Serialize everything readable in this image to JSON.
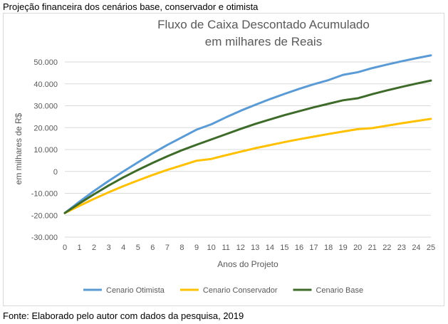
{
  "caption": {
    "top": "Projeção financeira dos cenários base, conservador e otimista",
    "bottom": "Fonte: Elaborado pelo autor com dados da pesquisa, 2019"
  },
  "chart_data": {
    "type": "line",
    "title": "Fluxo de Caixa Descontado Acumulado",
    "subtitle": "em milhares de Reais",
    "xlabel": "Anos do Projeto",
    "ylabel": "em milhares de R$",
    "ylim": [
      -30000,
      50000
    ],
    "y_ticks": [
      -30000,
      -20000,
      -10000,
      0,
      10000,
      20000,
      30000,
      40000,
      50000
    ],
    "y_tick_labels": [
      "-30.000",
      "-20.000",
      "-10.000",
      "0",
      "10.000",
      "20.000",
      "30.000",
      "40.000",
      "50.000"
    ],
    "x": [
      0,
      1,
      2,
      3,
      4,
      5,
      6,
      7,
      8,
      9,
      10,
      11,
      12,
      13,
      14,
      15,
      16,
      17,
      18,
      19,
      20,
      21,
      22,
      23,
      24,
      25
    ],
    "x_tick_labels": [
      "0",
      "1",
      "2",
      "3",
      "4",
      "5",
      "6",
      "7",
      "8",
      "9",
      "10",
      "11",
      "12",
      "13",
      "14",
      "15",
      "16",
      "17",
      "18",
      "19",
      "20",
      "21",
      "22",
      "23",
      "24",
      "25"
    ],
    "grid": true,
    "legend_position": "bottom",
    "series": [
      {
        "name": "Cenario Otimista",
        "color": "#5b9bd5",
        "values": [
          -19000,
          -13800,
          -8900,
          -4300,
          0,
          4200,
          8300,
          12100,
          15600,
          19100,
          21500,
          24700,
          27700,
          30400,
          33000,
          35400,
          37700,
          39800,
          41700,
          44100,
          45300,
          47200,
          48800,
          50300,
          51700,
          53000
        ]
      },
      {
        "name": "Cenario Conservador",
        "color": "#ffc000",
        "values": [
          -19000,
          -15700,
          -12500,
          -9500,
          -6700,
          -4100,
          -1600,
          700,
          2800,
          4900,
          5700,
          7400,
          9000,
          10600,
          12000,
          13400,
          14700,
          15900,
          17100,
          18200,
          19300,
          19800,
          20900,
          22000,
          23000,
          24000
        ]
      },
      {
        "name": "Cenario Base",
        "color": "#3e6b2a",
        "values": [
          -19000,
          -14600,
          -10400,
          -6400,
          -2700,
          700,
          3900,
          6900,
          9700,
          12200,
          14600,
          17000,
          19400,
          21700,
          23700,
          25700,
          27500,
          29300,
          30900,
          32500,
          33400,
          35300,
          37000,
          38600,
          40100,
          41500
        ]
      }
    ]
  }
}
